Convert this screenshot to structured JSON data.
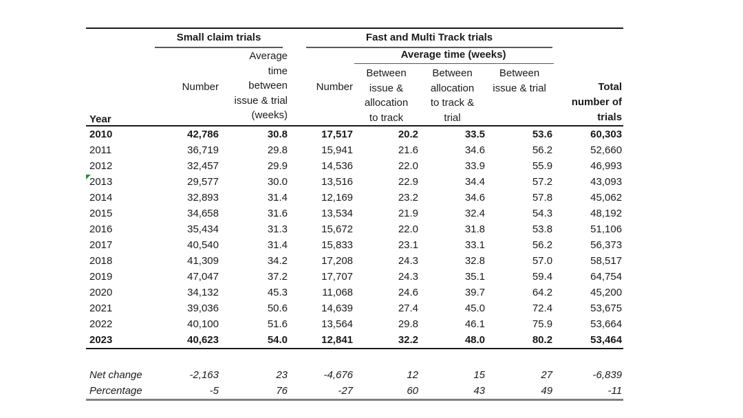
{
  "colors": {
    "rule_dark": "#1a1a1a",
    "rule_group": "#595959",
    "rule_bottom": "#808080",
    "flag_green": "#1d9138",
    "text": "#1a1a1a"
  },
  "table": {
    "groups": {
      "small_claim": "Small claim trials",
      "fast_multi": "Fast and Multi Track trials",
      "avg_time": "Average time (weeks)"
    },
    "headers": {
      "year": "Year",
      "sc_number": "Number",
      "sc_avg_time": "Average\ntime\nbetween\nissue & trial\n(weeks)",
      "fm_number": "Number",
      "between_issue_allocation": "Between\nissue &\nallocation\nto track",
      "between_allocation_trial": "Between\nallocation\nto track &\ntrial",
      "between_issue_trial": "Between\nissue & trial",
      "total": "Total\nnumber of\ntrials"
    },
    "flagged_year": "2013",
    "body_rows": [
      [
        "2010",
        "42,786",
        "30.8",
        "17,517",
        "20.2",
        "33.5",
        "53.6",
        "60,303"
      ],
      [
        "2011",
        "36,719",
        "29.8",
        "15,941",
        "21.6",
        "34.6",
        "56.2",
        "52,660"
      ],
      [
        "2012",
        "32,457",
        "29.9",
        "14,536",
        "22.0",
        "33.9",
        "55.9",
        "46,993"
      ],
      [
        "2013",
        "29,577",
        "30.0",
        "13,516",
        "22.9",
        "34.4",
        "57.2",
        "43,093"
      ],
      [
        "2014",
        "32,893",
        "31.4",
        "12,169",
        "23.2",
        "34.6",
        "57.8",
        "45,062"
      ],
      [
        "2015",
        "34,658",
        "31.6",
        "13,534",
        "21.9",
        "32.4",
        "54.3",
        "48,192"
      ],
      [
        "2016",
        "35,434",
        "31.3",
        "15,672",
        "22.0",
        "31.8",
        "53.8",
        "51,106"
      ],
      [
        "2017",
        "40,540",
        "31.4",
        "15,833",
        "23.1",
        "33.1",
        "56.2",
        "56,373"
      ],
      [
        "2018",
        "41,309",
        "34.2",
        "17,208",
        "24.3",
        "32.8",
        "57.0",
        "58,517"
      ],
      [
        "2019",
        "47,047",
        "37.2",
        "17,707",
        "24.3",
        "35.1",
        "59.4",
        "64,754"
      ],
      [
        "2020",
        "34,132",
        "45.3",
        "11,068",
        "24.6",
        "39.7",
        "64.2",
        "45,200"
      ],
      [
        "2021",
        "39,036",
        "50.6",
        "14,639",
        "27.4",
        "45.0",
        "72.4",
        "53,675"
      ],
      [
        "2022",
        "40,100",
        "51.6",
        "13,564",
        "29.8",
        "46.1",
        "75.9",
        "53,664"
      ],
      [
        "2023",
        "40,623",
        "54.0",
        "12,841",
        "32.2",
        "48.0",
        "80.2",
        "53,464"
      ]
    ],
    "footer_rows": [
      [
        "Net change",
        "-2,163",
        "23",
        "-4,676",
        "12",
        "15",
        "27",
        "-6,839"
      ],
      [
        "Percentage",
        "-5",
        "76",
        "-27",
        "60",
        "43",
        "49",
        "-11"
      ]
    ]
  }
}
